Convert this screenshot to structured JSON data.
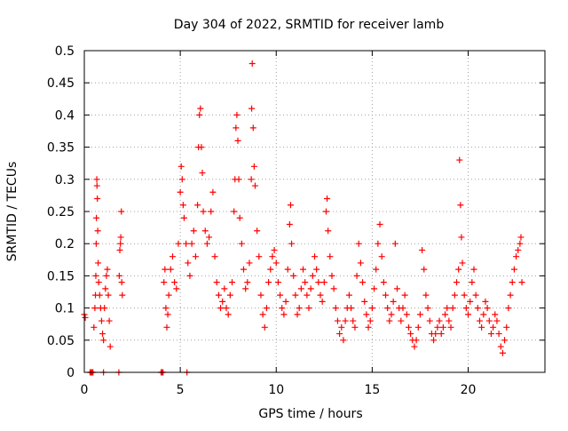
{
  "chart_data": {
    "type": "scatter",
    "title": "Day 304 of 2022, SRMTID for receiver lamb",
    "xlabel": "GPS time / hours",
    "ylabel": "SRMTID / TECUs",
    "xlim": [
      0,
      24
    ],
    "ylim": [
      0,
      0.5
    ],
    "x_ticks": [
      "0",
      "5",
      "10",
      "15",
      "20"
    ],
    "y_ticks": [
      "0",
      "0.05",
      "0.1",
      "0.15",
      "0.2",
      "0.25",
      "0.3",
      "0.35",
      "0.4",
      "0.45",
      "0.5"
    ],
    "grid": true,
    "marker": "+",
    "color": "#ff0000",
    "series": [
      {
        "name": "SRMTID",
        "points": [
          [
            0.0,
            0.09
          ],
          [
            0.05,
            0.085
          ],
          [
            0.3,
            0.0
          ],
          [
            0.35,
            0.0
          ],
          [
            0.4,
            0.0
          ],
          [
            0.45,
            0.0
          ],
          [
            0.5,
            0.07
          ],
          [
            0.55,
            0.1
          ],
          [
            0.58,
            0.12
          ],
          [
            0.6,
            0.15
          ],
          [
            0.62,
            0.2
          ],
          [
            0.63,
            0.24
          ],
          [
            0.65,
            0.3
          ],
          [
            0.66,
            0.29
          ],
          [
            0.68,
            0.27
          ],
          [
            0.7,
            0.22
          ],
          [
            0.72,
            0.17
          ],
          [
            0.75,
            0.14
          ],
          [
            0.8,
            0.12
          ],
          [
            0.85,
            0.1
          ],
          [
            0.9,
            0.08
          ],
          [
            0.95,
            0.06
          ],
          [
            1.0,
            0.05
          ],
          [
            1.0,
            0.0
          ],
          [
            1.05,
            0.1
          ],
          [
            1.1,
            0.13
          ],
          [
            1.15,
            0.15
          ],
          [
            1.2,
            0.16
          ],
          [
            1.25,
            0.12
          ],
          [
            1.3,
            0.08
          ],
          [
            1.35,
            0.04
          ],
          [
            1.8,
            0.0
          ],
          [
            1.82,
            0.15
          ],
          [
            1.85,
            0.19
          ],
          [
            1.88,
            0.2
          ],
          [
            1.9,
            0.21
          ],
          [
            1.93,
            0.25
          ],
          [
            1.95,
            0.14
          ],
          [
            1.98,
            0.12
          ],
          [
            4.0,
            0.0
          ],
          [
            4.05,
            0.0
          ],
          [
            4.1,
            0.0
          ],
          [
            4.15,
            0.14
          ],
          [
            4.2,
            0.16
          ],
          [
            4.25,
            0.1
          ],
          [
            4.3,
            0.07
          ],
          [
            4.35,
            0.09
          ],
          [
            4.4,
            0.12
          ],
          [
            4.5,
            0.16
          ],
          [
            4.6,
            0.18
          ],
          [
            4.7,
            0.14
          ],
          [
            4.8,
            0.13
          ],
          [
            4.9,
            0.2
          ],
          [
            5.0,
            0.28
          ],
          [
            5.05,
            0.32
          ],
          [
            5.1,
            0.3
          ],
          [
            5.15,
            0.26
          ],
          [
            5.2,
            0.24
          ],
          [
            5.3,
            0.2
          ],
          [
            5.35,
            0.0
          ],
          [
            5.4,
            0.17
          ],
          [
            5.5,
            0.15
          ],
          [
            5.6,
            0.2
          ],
          [
            5.7,
            0.22
          ],
          [
            5.8,
            0.18
          ],
          [
            5.9,
            0.26
          ],
          [
            5.95,
            0.35
          ],
          [
            6.0,
            0.4
          ],
          [
            6.05,
            0.41
          ],
          [
            6.1,
            0.35
          ],
          [
            6.15,
            0.31
          ],
          [
            6.2,
            0.25
          ],
          [
            6.3,
            0.22
          ],
          [
            6.4,
            0.2
          ],
          [
            6.5,
            0.21
          ],
          [
            6.6,
            0.25
          ],
          [
            6.7,
            0.28
          ],
          [
            6.8,
            0.18
          ],
          [
            6.9,
            0.14
          ],
          [
            7.0,
            0.12
          ],
          [
            7.1,
            0.1
          ],
          [
            7.2,
            0.11
          ],
          [
            7.3,
            0.13
          ],
          [
            7.4,
            0.1
          ],
          [
            7.5,
            0.09
          ],
          [
            7.6,
            0.12
          ],
          [
            7.7,
            0.14
          ],
          [
            7.8,
            0.25
          ],
          [
            7.85,
            0.3
          ],
          [
            7.9,
            0.38
          ],
          [
            7.95,
            0.4
          ],
          [
            8.0,
            0.36
          ],
          [
            8.05,
            0.3
          ],
          [
            8.1,
            0.24
          ],
          [
            8.2,
            0.2
          ],
          [
            8.3,
            0.16
          ],
          [
            8.4,
            0.13
          ],
          [
            8.5,
            0.14
          ],
          [
            8.6,
            0.17
          ],
          [
            8.7,
            0.3
          ],
          [
            8.72,
            0.41
          ],
          [
            8.75,
            0.48
          ],
          [
            8.8,
            0.38
          ],
          [
            8.85,
            0.32
          ],
          [
            8.9,
            0.29
          ],
          [
            9.0,
            0.22
          ],
          [
            9.1,
            0.18
          ],
          [
            9.2,
            0.12
          ],
          [
            9.3,
            0.09
          ],
          [
            9.4,
            0.07
          ],
          [
            9.5,
            0.1
          ],
          [
            9.6,
            0.14
          ],
          [
            9.7,
            0.16
          ],
          [
            9.8,
            0.18
          ],
          [
            9.9,
            0.19
          ],
          [
            10.0,
            0.17
          ],
          [
            10.1,
            0.14
          ],
          [
            10.2,
            0.12
          ],
          [
            10.3,
            0.1
          ],
          [
            10.4,
            0.09
          ],
          [
            10.5,
            0.11
          ],
          [
            10.6,
            0.16
          ],
          [
            10.7,
            0.23
          ],
          [
            10.75,
            0.26
          ],
          [
            10.8,
            0.2
          ],
          [
            10.9,
            0.15
          ],
          [
            11.0,
            0.12
          ],
          [
            11.1,
            0.09
          ],
          [
            11.2,
            0.1
          ],
          [
            11.3,
            0.13
          ],
          [
            11.4,
            0.16
          ],
          [
            11.5,
            0.14
          ],
          [
            11.6,
            0.12
          ],
          [
            11.7,
            0.1
          ],
          [
            11.8,
            0.13
          ],
          [
            11.9,
            0.15
          ],
          [
            12.0,
            0.18
          ],
          [
            12.1,
            0.16
          ],
          [
            12.2,
            0.14
          ],
          [
            12.3,
            0.12
          ],
          [
            12.4,
            0.11
          ],
          [
            12.5,
            0.14
          ],
          [
            12.6,
            0.25
          ],
          [
            12.65,
            0.27
          ],
          [
            12.7,
            0.22
          ],
          [
            12.8,
            0.18
          ],
          [
            12.9,
            0.15
          ],
          [
            13.0,
            0.13
          ],
          [
            13.1,
            0.1
          ],
          [
            13.2,
            0.08
          ],
          [
            13.3,
            0.06
          ],
          [
            13.4,
            0.07
          ],
          [
            13.5,
            0.05
          ],
          [
            13.6,
            0.08
          ],
          [
            13.7,
            0.1
          ],
          [
            13.8,
            0.12
          ],
          [
            13.9,
            0.1
          ],
          [
            14.0,
            0.08
          ],
          [
            14.1,
            0.07
          ],
          [
            14.2,
            0.15
          ],
          [
            14.3,
            0.2
          ],
          [
            14.4,
            0.17
          ],
          [
            14.5,
            0.14
          ],
          [
            14.6,
            0.11
          ],
          [
            14.7,
            0.09
          ],
          [
            14.8,
            0.07
          ],
          [
            14.9,
            0.08
          ],
          [
            15.0,
            0.1
          ],
          [
            15.1,
            0.13
          ],
          [
            15.2,
            0.16
          ],
          [
            15.3,
            0.2
          ],
          [
            15.4,
            0.23
          ],
          [
            15.5,
            0.18
          ],
          [
            15.6,
            0.14
          ],
          [
            15.7,
            0.12
          ],
          [
            15.8,
            0.1
          ],
          [
            15.9,
            0.08
          ],
          [
            16.0,
            0.09
          ],
          [
            16.1,
            0.11
          ],
          [
            16.2,
            0.2
          ],
          [
            16.3,
            0.13
          ],
          [
            16.4,
            0.1
          ],
          [
            16.5,
            0.08
          ],
          [
            16.6,
            0.1
          ],
          [
            16.7,
            0.12
          ],
          [
            16.8,
            0.09
          ],
          [
            16.9,
            0.07
          ],
          [
            17.0,
            0.06
          ],
          [
            17.1,
            0.05
          ],
          [
            17.2,
            0.04
          ],
          [
            17.3,
            0.05
          ],
          [
            17.4,
            0.07
          ],
          [
            17.5,
            0.09
          ],
          [
            17.6,
            0.19
          ],
          [
            17.7,
            0.16
          ],
          [
            17.8,
            0.12
          ],
          [
            17.9,
            0.1
          ],
          [
            18.0,
            0.08
          ],
          [
            18.1,
            0.06
          ],
          [
            18.2,
            0.05
          ],
          [
            18.3,
            0.06
          ],
          [
            18.4,
            0.07
          ],
          [
            18.5,
            0.08
          ],
          [
            18.6,
            0.06
          ],
          [
            18.7,
            0.07
          ],
          [
            18.8,
            0.09
          ],
          [
            18.9,
            0.1
          ],
          [
            19.0,
            0.08
          ],
          [
            19.1,
            0.07
          ],
          [
            19.2,
            0.1
          ],
          [
            19.3,
            0.12
          ],
          [
            19.4,
            0.14
          ],
          [
            19.5,
            0.16
          ],
          [
            19.55,
            0.33
          ],
          [
            19.6,
            0.26
          ],
          [
            19.65,
            0.21
          ],
          [
            19.7,
            0.17
          ],
          [
            19.8,
            0.12
          ],
          [
            19.9,
            0.1
          ],
          [
            20.0,
            0.09
          ],
          [
            20.1,
            0.11
          ],
          [
            20.2,
            0.14
          ],
          [
            20.3,
            0.16
          ],
          [
            20.4,
            0.12
          ],
          [
            20.5,
            0.1
          ],
          [
            20.6,
            0.08
          ],
          [
            20.7,
            0.07
          ],
          [
            20.8,
            0.09
          ],
          [
            20.9,
            0.11
          ],
          [
            21.0,
            0.1
          ],
          [
            21.1,
            0.08
          ],
          [
            21.2,
            0.06
          ],
          [
            21.3,
            0.07
          ],
          [
            21.4,
            0.09
          ],
          [
            21.5,
            0.08
          ],
          [
            21.6,
            0.06
          ],
          [
            21.7,
            0.04
          ],
          [
            21.8,
            0.03
          ],
          [
            21.9,
            0.05
          ],
          [
            22.0,
            0.07
          ],
          [
            22.1,
            0.1
          ],
          [
            22.2,
            0.12
          ],
          [
            22.3,
            0.14
          ],
          [
            22.4,
            0.16
          ],
          [
            22.5,
            0.18
          ],
          [
            22.6,
            0.19
          ],
          [
            22.7,
            0.2
          ],
          [
            22.75,
            0.21
          ],
          [
            22.8,
            0.14
          ]
        ]
      }
    ]
  }
}
